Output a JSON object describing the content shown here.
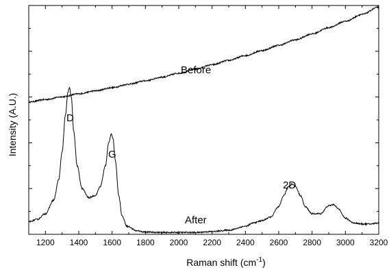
{
  "chart_data": {
    "type": "line",
    "xlabel_main": "Raman shift (cm",
    "xlabel_sup": "-1",
    "xlabel_close": ")",
    "ylabel": "Intensity (A.U.)",
    "xlim": [
      1100,
      3200
    ],
    "ylim": [
      0,
      100
    ],
    "y_tick_labels_shown": false,
    "grid": false,
    "x_ticks": [
      1200,
      1400,
      1600,
      1800,
      2000,
      2200,
      2400,
      2600,
      2800,
      3000,
      3200
    ],
    "x_tick_labels": [
      "1200",
      "1400",
      "1600",
      "1800",
      "2000",
      "2200",
      "2400",
      "2600",
      "2800",
      "3000",
      "3200"
    ],
    "y_ticks": [
      0,
      20,
      40,
      60,
      80,
      100
    ],
    "series": [
      {
        "name": "Before",
        "color": "#000000",
        "x": [
          1100,
          1200,
          1300,
          1400,
          1500,
          1600,
          1700,
          1800,
          1900,
          2000,
          2100,
          2200,
          2300,
          2400,
          2500,
          2600,
          2700,
          2800,
          2900,
          3000,
          3100,
          3200
        ],
        "y": [
          57.8,
          58.9,
          60.1,
          61.4,
          62.7,
          64.1,
          65.6,
          67.1,
          68.7,
          70.4,
          72.2,
          74.1,
          76.0,
          78.1,
          80.3,
          82.6,
          85.0,
          87.6,
          90.3,
          93.1,
          96.1,
          99.3
        ]
      },
      {
        "name": "After",
        "color": "#000000",
        "x": [
          1100,
          1150,
          1200,
          1250,
          1280,
          1300,
          1320,
          1335,
          1345,
          1355,
          1370,
          1390,
          1420,
          1460,
          1500,
          1530,
          1560,
          1580,
          1595,
          1605,
          1620,
          1640,
          1660,
          1690,
          1750,
          1800,
          1900,
          2000,
          2100,
          2200,
          2300,
          2400,
          2450,
          2500,
          2550,
          2600,
          2630,
          2660,
          2680,
          2700,
          2730,
          2760,
          2800,
          2850,
          2900,
          2930,
          2960,
          3000,
          3050,
          3100,
          3150,
          3200
        ],
        "y": [
          5.5,
          6.5,
          9.0,
          15.0,
          24.0,
          36.0,
          52.0,
          62.0,
          64.0,
          60.0,
          45.0,
          30.0,
          20.0,
          16.0,
          17.0,
          21.0,
          30.0,
          40.0,
          44.0,
          42.0,
          32.0,
          17.0,
          8.0,
          3.5,
          1.5,
          1.0,
          0.8,
          0.8,
          0.8,
          1.2,
          1.8,
          3.5,
          5.0,
          6.0,
          7.5,
          12.0,
          17.0,
          21.0,
          22.0,
          21.0,
          17.0,
          12.0,
          9.0,
          9.0,
          12.5,
          13.0,
          11.0,
          7.0,
          5.0,
          4.5,
          4.5,
          5.0
        ]
      }
    ],
    "annotations": {
      "before": "Before",
      "after": "After",
      "D": "D",
      "G": "G",
      "2D": "2D"
    }
  }
}
